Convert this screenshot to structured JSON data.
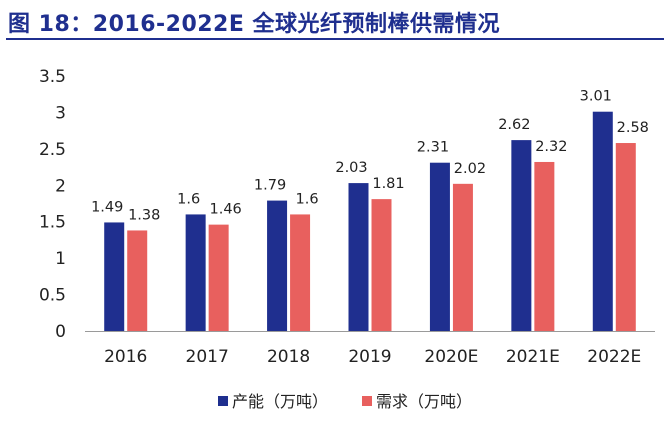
{
  "title": "图 18：2016-2022E 全球光纤预制棒供需情况",
  "chart_data": {
    "type": "bar",
    "title": "图 18：2016-2022E 全球光纤预制棒供需情况",
    "categories": [
      "2016",
      "2017",
      "2018",
      "2019",
      "2020E",
      "2021E",
      "2022E"
    ],
    "series": [
      {
        "name": "产能（万吨）",
        "color": "#1f2f8f",
        "values": [
          1.49,
          1.6,
          1.79,
          2.03,
          2.31,
          2.62,
          3.01
        ],
        "labels": [
          "1.49",
          "1.6",
          "1.79",
          "2.03",
          "2.31",
          "2.62",
          "3.01"
        ]
      },
      {
        "name": "需求（万吨）",
        "color": "#e8605e",
        "values": [
          1.38,
          1.46,
          1.6,
          1.81,
          2.02,
          2.32,
          2.58
        ],
        "labels": [
          "1.38",
          "1.46",
          "1.6",
          "1.81",
          "2.02",
          "2.32",
          "2.58"
        ]
      }
    ],
    "yticks": [
      "0",
      "0.5",
      "1",
      "1.5",
      "2",
      "2.5",
      "3",
      "3.5"
    ],
    "ylim": [
      0,
      3.5
    ],
    "xlabel": "",
    "ylabel": "",
    "grid": false,
    "legend": "bottom"
  }
}
